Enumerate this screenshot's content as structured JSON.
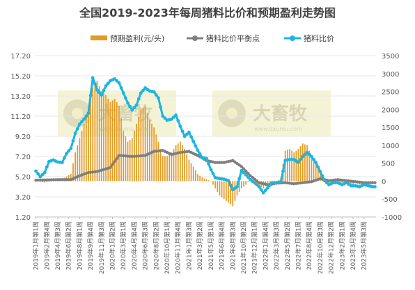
{
  "chart_data": {
    "type": "bar+line",
    "title": "全国2019-2023年每周猪料比价和预期盈利走势图",
    "legend": [
      {
        "name": "预期盈利(元/头)",
        "type": "bar",
        "color": "#E59A25"
      },
      {
        "name": "猪料比价平衡点",
        "type": "line",
        "color": "#7F7F7F"
      },
      {
        "name": "猪料比价",
        "type": "line",
        "color": "#1CB5E0"
      }
    ],
    "legend_position": "top",
    "y_left": {
      "ticks": [
        "1.20",
        "3.20",
        "5.20",
        "7.20",
        "9.20",
        "11.20",
        "13.20",
        "15.20",
        "17.20"
      ],
      "range": [
        1.2,
        17.2
      ]
    },
    "y_right": {
      "ticks": [
        "-1000",
        "-500",
        "0",
        "500",
        "1000",
        "1500",
        "2000",
        "2500",
        "3000",
        "3500"
      ],
      "range": [
        -1000,
        3500
      ]
    },
    "x_tick_labels": [
      "2019年1月第1周",
      "2019年2月第4周",
      "2019年4月第3周",
      "2019年6月第2周",
      "2019年8月第1周",
      "2019年9月第4周",
      "2019年11月第3周",
      "2020年1月第2周",
      "2020年3月第1周",
      "2020年4月第4周",
      "2020年6月第3周",
      "2020年8月第2周",
      "2020年10月第1周",
      "2020年11月第4周",
      "2021年1月第3周",
      "2021年3月第2周",
      "2021年5月第1周",
      "2021年6月第4周",
      "2021年8月第3周",
      "2021年10月第2周",
      "2021年12月第1周",
      "2022年1月第4周",
      "2022年3月第3周",
      "2022年5月第2周",
      "2022年7月第1周",
      "2022年8月第4周",
      "2022年10月第3周",
      "2022年12月第2周",
      "2023年2月第1周",
      "2023年3月第4周",
      "2023年5月第3周"
    ],
    "ratio_points": [
      [
        0,
        5.75
      ],
      [
        2,
        5.2
      ],
      [
        4,
        5.6
      ],
      [
        6,
        6.7
      ],
      [
        8,
        6.85
      ],
      [
        10,
        6.65
      ],
      [
        12,
        6.6
      ],
      [
        14,
        7.5
      ],
      [
        16,
        8.0
      ],
      [
        18,
        9.5
      ],
      [
        20,
        10.4
      ],
      [
        22,
        10.9
      ],
      [
        24,
        11.5
      ],
      [
        26,
        15.0
      ],
      [
        28,
        13.8
      ],
      [
        30,
        13.3
      ],
      [
        32,
        14.2
      ],
      [
        34,
        14.7
      ],
      [
        36,
        14.9
      ],
      [
        38,
        14.5
      ],
      [
        40,
        13.5
      ],
      [
        42,
        12.5
      ],
      [
        44,
        11.8
      ],
      [
        46,
        12.3
      ],
      [
        48,
        13.5
      ],
      [
        50,
        14.0
      ],
      [
        52,
        13.7
      ],
      [
        54,
        13.6
      ],
      [
        56,
        13.0
      ],
      [
        58,
        11.2
      ],
      [
        60,
        10.8
      ],
      [
        62,
        10.9
      ],
      [
        64,
        11.3
      ],
      [
        66,
        10.2
      ],
      [
        68,
        9.2
      ],
      [
        70,
        9.6
      ],
      [
        72,
        8.7
      ],
      [
        74,
        7.8
      ],
      [
        76,
        7.1
      ],
      [
        78,
        7.0
      ],
      [
        80,
        5.9
      ],
      [
        82,
        5.1
      ],
      [
        84,
        5.0
      ],
      [
        86,
        4.95
      ],
      [
        88,
        4.8
      ],
      [
        90,
        3.9
      ],
      [
        92,
        4.2
      ],
      [
        94,
        5.8
      ],
      [
        96,
        5.4
      ],
      [
        98,
        4.9
      ],
      [
        100,
        4.6
      ],
      [
        102,
        4.2
      ],
      [
        104,
        3.6
      ],
      [
        106,
        4.1
      ],
      [
        108,
        4.6
      ],
      [
        110,
        4.6
      ],
      [
        112,
        4.7
      ],
      [
        114,
        6.8
      ],
      [
        116,
        6.9
      ],
      [
        118,
        6.9
      ],
      [
        120,
        6.6
      ],
      [
        122,
        7.2
      ],
      [
        124,
        7.6
      ],
      [
        126,
        7.2
      ],
      [
        128,
        6.6
      ],
      [
        130,
        5.7
      ],
      [
        132,
        4.8
      ],
      [
        134,
        4.4
      ],
      [
        136,
        4.6
      ],
      [
        138,
        4.6
      ],
      [
        140,
        4.4
      ],
      [
        142,
        4.6
      ],
      [
        144,
        4.3
      ],
      [
        146,
        4.3
      ],
      [
        148,
        4.2
      ],
      [
        150,
        4.4
      ],
      [
        152,
        4.3
      ],
      [
        154,
        4.2
      ]
    ],
    "breakeven_points": [
      [
        0,
        4.85
      ],
      [
        10,
        4.9
      ],
      [
        16,
        4.9
      ],
      [
        20,
        5.3
      ],
      [
        24,
        5.6
      ],
      [
        28,
        5.7
      ],
      [
        34,
        6.1
      ],
      [
        38,
        7.3
      ],
      [
        44,
        7.2
      ],
      [
        50,
        7.3
      ],
      [
        54,
        7.7
      ],
      [
        58,
        7.8
      ],
      [
        62,
        7.4
      ],
      [
        66,
        7.6
      ],
      [
        70,
        7.7
      ],
      [
        74,
        7.3
      ],
      [
        78,
        6.8
      ],
      [
        82,
        6.6
      ],
      [
        86,
        6.6
      ],
      [
        90,
        6.8
      ],
      [
        94,
        6.2
      ],
      [
        98,
        5.3
      ],
      [
        102,
        4.6
      ],
      [
        106,
        4.4
      ],
      [
        110,
        4.55
      ],
      [
        114,
        4.6
      ],
      [
        118,
        4.5
      ],
      [
        122,
        4.6
      ],
      [
        126,
        4.7
      ],
      [
        130,
        5.0
      ],
      [
        134,
        4.8
      ],
      [
        138,
        4.9
      ],
      [
        142,
        4.8
      ],
      [
        146,
        4.7
      ],
      [
        150,
        4.6
      ],
      [
        154,
        4.6
      ]
    ],
    "profit_points": [
      [
        0,
        0
      ],
      [
        4,
        -40
      ],
      [
        8,
        30
      ],
      [
        12,
        60
      ],
      [
        16,
        200
      ],
      [
        18,
        800
      ],
      [
        20,
        1200
      ],
      [
        22,
        1600
      ],
      [
        24,
        2100
      ],
      [
        26,
        2600
      ],
      [
        28,
        2800
      ],
      [
        30,
        2500
      ],
      [
        32,
        2400
      ],
      [
        34,
        2200
      ],
      [
        36,
        2300
      ],
      [
        38,
        2100
      ],
      [
        40,
        1400
      ],
      [
        42,
        1100
      ],
      [
        44,
        1200
      ],
      [
        46,
        1600
      ],
      [
        48,
        2000
      ],
      [
        50,
        2100
      ],
      [
        52,
        1700
      ],
      [
        54,
        1500
      ],
      [
        56,
        1100
      ],
      [
        58,
        700
      ],
      [
        60,
        700
      ],
      [
        62,
        800
      ],
      [
        64,
        1000
      ],
      [
        66,
        1100
      ],
      [
        68,
        900
      ],
      [
        70,
        600
      ],
      [
        72,
        400
      ],
      [
        74,
        200
      ],
      [
        76,
        100
      ],
      [
        78,
        50
      ],
      [
        80,
        0
      ],
      [
        82,
        -200
      ],
      [
        84,
        -400
      ],
      [
        86,
        -500
      ],
      [
        88,
        -600
      ],
      [
        90,
        -700
      ],
      [
        92,
        -400
      ],
      [
        94,
        -200
      ],
      [
        96,
        -100
      ],
      [
        98,
        50
      ],
      [
        100,
        -100
      ],
      [
        102,
        -150
      ],
      [
        104,
        -200
      ],
      [
        106,
        -100
      ],
      [
        108,
        0
      ],
      [
        110,
        -50
      ],
      [
        112,
        100
      ],
      [
        114,
        850
      ],
      [
        116,
        900
      ],
      [
        118,
        800
      ],
      [
        120,
        900
      ],
      [
        122,
        1050
      ],
      [
        124,
        1000
      ],
      [
        126,
        700
      ],
      [
        128,
        500
      ],
      [
        130,
        300
      ],
      [
        132,
        0
      ],
      [
        134,
        -100
      ],
      [
        136,
        0
      ],
      [
        138,
        0
      ],
      [
        140,
        -50
      ],
      [
        142,
        0
      ],
      [
        144,
        -100
      ],
      [
        146,
        -50
      ],
      [
        148,
        -100
      ],
      [
        150,
        -50
      ],
      [
        152,
        -50
      ],
      [
        154,
        -30
      ]
    ],
    "x_count": 156,
    "watermark": "大畜牧",
    "watermark_sub": "www.dxumu.com"
  }
}
